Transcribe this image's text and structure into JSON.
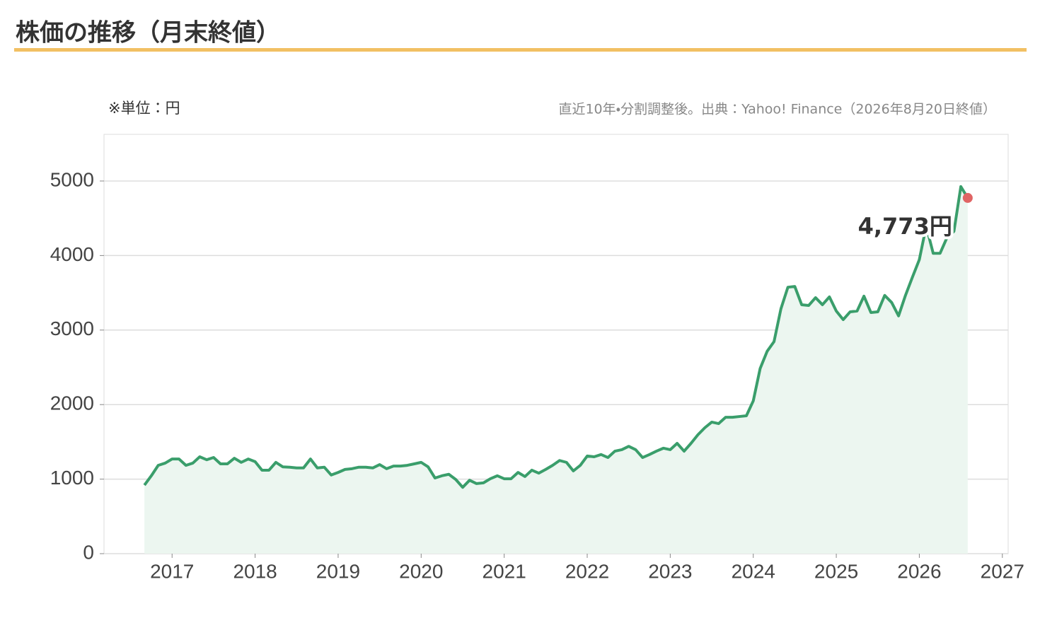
{
  "chart_data": {
    "type": "line",
    "title": "株価の推移（月末終値）",
    "unit_note": "※単位：円",
    "source_note": "直近10年・分割調整後。出典：Yahoo! Finance（2026年8月20日終値）",
    "x": [
      2016.667,
      2016.75,
      2016.833,
      2016.917,
      2017,
      2017.083,
      2017.167,
      2017.25,
      2017.333,
      2017.417,
      2017.5,
      2017.583,
      2017.667,
      2017.75,
      2017.833,
      2017.917,
      2018,
      2018.083,
      2018.167,
      2018.25,
      2018.333,
      2018.417,
      2018.5,
      2018.583,
      2018.667,
      2018.75,
      2018.833,
      2018.917,
      2019,
      2019.083,
      2019.167,
      2019.25,
      2019.333,
      2019.417,
      2019.5,
      2019.583,
      2019.667,
      2019.75,
      2019.833,
      2019.917,
      2020,
      2020.083,
      2020.167,
      2020.25,
      2020.333,
      2020.417,
      2020.5,
      2020.583,
      2020.667,
      2020.75,
      2020.833,
      2020.917,
      2021,
      2021.083,
      2021.167,
      2021.25,
      2021.333,
      2021.417,
      2021.5,
      2021.583,
      2021.667,
      2021.75,
      2021.833,
      2021.917,
      2022,
      2022.083,
      2022.167,
      2022.25,
      2022.333,
      2022.417,
      2022.5,
      2022.583,
      2022.667,
      2022.75,
      2022.833,
      2022.917,
      2023,
      2023.083,
      2023.167,
      2023.25,
      2023.333,
      2023.417,
      2023.5,
      2023.583,
      2023.667,
      2023.75,
      2023.833,
      2023.917,
      2024,
      2024.083,
      2024.167,
      2024.25,
      2024.333,
      2024.417,
      2024.5,
      2024.583,
      2024.667,
      2024.75,
      2024.833,
      2024.917,
      2025,
      2025.083,
      2025.167,
      2025.25,
      2025.333,
      2025.417,
      2025.5,
      2025.583,
      2025.667,
      2025.75,
      2025.833,
      2025.917,
      2026,
      2026.083,
      2026.167,
      2026.25,
      2026.333,
      2026.417,
      2026.5,
      2026.583
    ],
    "series": [
      {
        "color": "#3a9e6b",
        "fill": "#ecf6f0",
        "marker_color": "#e06464",
        "values": [
          920,
          1045,
          1185,
          1215,
          1270,
          1270,
          1185,
          1215,
          1300,
          1260,
          1290,
          1205,
          1205,
          1280,
          1225,
          1270,
          1235,
          1120,
          1120,
          1225,
          1165,
          1160,
          1150,
          1150,
          1270,
          1150,
          1160,
          1055,
          1090,
          1130,
          1140,
          1160,
          1160,
          1150,
          1195,
          1140,
          1175,
          1175,
          1185,
          1205,
          1225,
          1165,
          1015,
          1045,
          1065,
          995,
          890,
          985,
          940,
          950,
          1005,
          1045,
          1005,
          1005,
          1090,
          1035,
          1120,
          1080,
          1130,
          1185,
          1250,
          1225,
          1110,
          1185,
          1310,
          1300,
          1330,
          1290,
          1375,
          1395,
          1440,
          1395,
          1290,
          1330,
          1375,
          1415,
          1395,
          1480,
          1375,
          1480,
          1595,
          1690,
          1765,
          1745,
          1830,
          1830,
          1840,
          1850,
          2050,
          2485,
          2715,
          2845,
          3285,
          3575,
          3585,
          3340,
          3330,
          3435,
          3340,
          3445,
          3255,
          3140,
          3245,
          3255,
          3455,
          3235,
          3245,
          3465,
          3370,
          3190,
          3465,
          3710,
          3945,
          4395,
          4030,
          4030,
          4240,
          4325,
          4925,
          4773
        ],
        "value_labels": [
          null,
          null,
          null,
          null,
          null,
          null,
          null,
          null,
          null,
          null,
          null,
          null,
          null,
          null,
          null,
          null,
          null,
          null,
          null,
          null,
          null,
          null,
          null,
          null,
          null,
          null,
          null,
          null,
          null,
          null,
          null,
          null,
          null,
          null,
          null,
          null,
          null,
          null,
          null,
          null,
          null,
          null,
          null,
          null,
          null,
          null,
          null,
          null,
          null,
          null,
          null,
          null,
          null,
          null,
          null,
          null,
          null,
          null,
          null,
          null,
          null,
          null,
          null,
          null,
          null,
          null,
          null,
          null,
          null,
          null,
          null,
          null,
          null,
          null,
          null,
          null,
          null,
          null,
          null,
          null,
          null,
          null,
          null,
          null,
          null,
          null,
          null,
          null,
          null,
          null,
          null,
          null,
          null,
          null,
          null,
          null,
          null,
          null,
          null,
          null,
          null,
          null,
          null,
          null,
          null,
          null,
          null,
          null,
          null,
          null,
          null,
          null,
          null,
          null,
          null,
          null,
          null,
          null,
          null,
          "4,773円"
        ]
      }
    ],
    "xlim": [
      2016.18,
      2027.07
    ],
    "xticks": [
      2017,
      2018,
      2019,
      2020,
      2021,
      2022,
      2023,
      2024,
      2025,
      2026,
      2027
    ],
    "ylim": [
      0,
      5626
    ],
    "yticks": [
      0,
      1000,
      2000,
      3000,
      4000,
      5000
    ],
    "grid": true
  }
}
